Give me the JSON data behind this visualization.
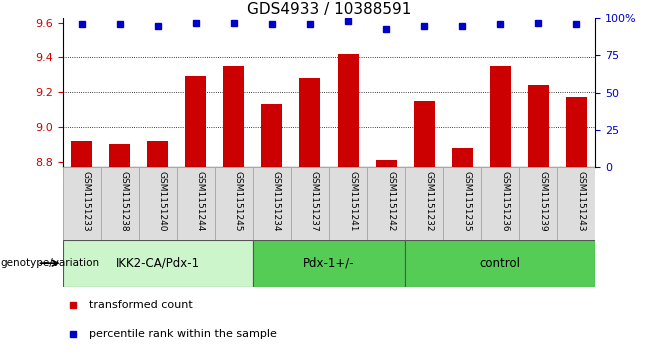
{
  "title": "GDS4933 / 10388591",
  "samples": [
    "GSM1151233",
    "GSM1151238",
    "GSM1151240",
    "GSM1151244",
    "GSM1151245",
    "GSM1151234",
    "GSM1151237",
    "GSM1151241",
    "GSM1151242",
    "GSM1151232",
    "GSM1151235",
    "GSM1151236",
    "GSM1151239",
    "GSM1151243"
  ],
  "bar_values": [
    8.92,
    8.9,
    8.92,
    9.29,
    9.35,
    9.13,
    9.28,
    9.42,
    8.81,
    9.15,
    8.88,
    9.35,
    9.24,
    9.17
  ],
  "percentile_values": [
    96,
    96,
    95,
    97,
    97,
    96,
    96,
    98,
    93,
    95,
    95,
    96,
    97,
    96
  ],
  "bar_color": "#cc0000",
  "dot_color": "#0000cc",
  "ylim_left": [
    8.77,
    9.625
  ],
  "ylim_right": [
    0,
    100
  ],
  "yticks_left": [
    8.8,
    9.0,
    9.2,
    9.4,
    9.6
  ],
  "yticks_right": [
    0,
    25,
    50,
    75,
    100
  ],
  "ytick_labels_right": [
    "0",
    "25",
    "50",
    "75",
    "100%"
  ],
  "groups": [
    {
      "label": "IKK2-CA/Pdx-1",
      "start": 0,
      "end": 5,
      "color": "#ccf5cc"
    },
    {
      "label": "Pdx-1+/-",
      "start": 5,
      "end": 9,
      "color": "#55cc55"
    },
    {
      "label": "control",
      "start": 9,
      "end": 14,
      "color": "#55cc55"
    }
  ],
  "xlabel_left": "genotype/variation",
  "legend_bar_label": "transformed count",
  "legend_dot_label": "percentile rank within the sample",
  "background_color": "#ffffff",
  "tick_label_color_left": "#cc0000",
  "tick_label_color_right": "#0000cc",
  "bar_bottom": 8.77,
  "bar_width": 0.55,
  "title_fontsize": 11,
  "sample_box_color": "#dddddd",
  "sample_box_edge": "#aaaaaa"
}
